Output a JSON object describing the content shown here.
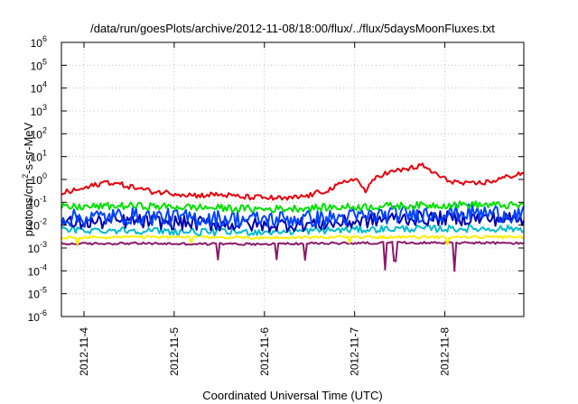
{
  "chart_data": {
    "type": "line",
    "title": "/data/run/goesPlots/archive/2012-11-08/18:00/flux/../flux/5daysMoonFluxes.txt",
    "xlabel": "Coordinated Universal Time (UTC)",
    "ylabel": {
      "prefix": "protons/cm",
      "sup": "2",
      "suffix": "-s-sr-MeV"
    },
    "yscale": "log",
    "ylim": [
      1e-06,
      1000000.0
    ],
    "y_ticks": [
      {
        "exp": "-6",
        "value": 1e-06
      },
      {
        "exp": "-5",
        "value": 1e-05
      },
      {
        "exp": "-4",
        "value": 0.0001
      },
      {
        "exp": "-3",
        "value": 0.001
      },
      {
        "exp": "-2",
        "value": 0.01
      },
      {
        "exp": "-1",
        "value": 0.1
      },
      {
        "exp": "0",
        "value": 1
      },
      {
        "exp": "1",
        "value": 10
      },
      {
        "exp": "2",
        "value": 100
      },
      {
        "exp": "3",
        "value": 1000
      },
      {
        "exp": "4",
        "value": 10000
      },
      {
        "exp": "5",
        "value": 100000
      },
      {
        "exp": "6",
        "value": 1000000
      }
    ],
    "y_tick_base": "10",
    "xlim": [
      "2012-11-03T18:00",
      "2012-11-08T21:00"
    ],
    "x_ticks": [
      "2012-11-4",
      "2012-11-5",
      "2012-11-6",
      "2012-11-7",
      "2012-11-8"
    ],
    "x_tick_dates": [
      "2012-11-04T00:00",
      "2012-11-05T00:00",
      "2012-11-06T00:00",
      "2012-11-07T00:00",
      "2012-11-08T00:00"
    ],
    "grid": true,
    "legend": "none",
    "series": [
      {
        "color": "#e8000b",
        "x": [
          "2012-11-03T18:00",
          "2012-11-04T00:00",
          "2012-11-04T06:00",
          "2012-11-04T12:00",
          "2012-11-04T18:00",
          "2012-11-05T00:00",
          "2012-11-05T06:00",
          "2012-11-05T12:00",
          "2012-11-05T18:00",
          "2012-11-06T00:00",
          "2012-11-06T06:00",
          "2012-11-06T12:00",
          "2012-11-06T18:00",
          "2012-11-07T00:00",
          "2012-11-07T03:00",
          "2012-11-07T06:00",
          "2012-11-07T12:00",
          "2012-11-07T18:00",
          "2012-11-08T00:00",
          "2012-11-08T06:00",
          "2012-11-08T12:00",
          "2012-11-08T18:00",
          "2012-11-08T21:00"
        ],
        "values": [
          0.25,
          0.4,
          0.8,
          0.5,
          0.3,
          0.25,
          0.2,
          0.22,
          0.17,
          0.16,
          0.14,
          0.2,
          0.4,
          1.2,
          0.3,
          1.5,
          2.5,
          4.0,
          1.0,
          0.6,
          0.8,
          1.5,
          2.0
        ]
      },
      {
        "color": "#00e000",
        "x": [
          "2012-11-03T18:00",
          "2012-11-04T12:00",
          "2012-11-05T06:00",
          "2012-11-06T00:00",
          "2012-11-06T18:00",
          "2012-11-07T12:00",
          "2012-11-08T06:00",
          "2012-11-08T21:00"
        ],
        "values": [
          0.06,
          0.07,
          0.06,
          0.05,
          0.06,
          0.07,
          0.08,
          0.07
        ]
      },
      {
        "color": "#0044ff",
        "x": [
          "2012-11-03T18:00",
          "2012-11-04T12:00",
          "2012-11-05T06:00",
          "2012-11-06T00:00",
          "2012-11-06T18:00",
          "2012-11-07T12:00",
          "2012-11-08T06:00",
          "2012-11-08T21:00"
        ],
        "values": [
          0.02,
          0.025,
          0.02,
          0.018,
          0.02,
          0.03,
          0.035,
          0.03
        ]
      },
      {
        "color": "#0000aa",
        "x": [
          "2012-11-03T18:00",
          "2012-11-04T12:00",
          "2012-11-05T06:00",
          "2012-11-06T00:00",
          "2012-11-06T18:00",
          "2012-11-07T12:00",
          "2012-11-08T06:00",
          "2012-11-08T21:00"
        ],
        "values": [
          0.012,
          0.015,
          0.012,
          0.01,
          0.012,
          0.02,
          0.02,
          0.018
        ]
      },
      {
        "color": "#00bbcc",
        "x": [
          "2012-11-03T18:00",
          "2012-11-04T12:00",
          "2012-11-05T06:00",
          "2012-11-06T00:00",
          "2012-11-06T18:00",
          "2012-11-07T12:00",
          "2012-11-08T06:00",
          "2012-11-08T21:00"
        ],
        "values": [
          0.006,
          0.006,
          0.005,
          0.005,
          0.006,
          0.007,
          0.007,
          0.007
        ]
      },
      {
        "color": "#ffee00",
        "x": [
          "2012-11-03T18:00",
          "2012-11-04T12:00",
          "2012-11-05T06:00",
          "2012-11-06T00:00",
          "2012-11-06T18:00",
          "2012-11-07T12:00",
          "2012-11-08T06:00",
          "2012-11-08T21:00"
        ],
        "values": [
          0.0028,
          0.003,
          0.003,
          0.0028,
          0.003,
          0.003,
          0.003,
          0.003
        ]
      },
      {
        "color": "#8b1a6b",
        "x": [
          "2012-11-03T18:00",
          "2012-11-04T12:00",
          "2012-11-05T06:00",
          "2012-11-06T00:00",
          "2012-11-06T18:00",
          "2012-11-07T12:00",
          "2012-11-08T06:00",
          "2012-11-08T21:00"
        ],
        "values": [
          0.0015,
          0.0016,
          0.0015,
          0.0015,
          0.0016,
          0.0017,
          0.0017,
          0.0016
        ]
      }
    ]
  }
}
